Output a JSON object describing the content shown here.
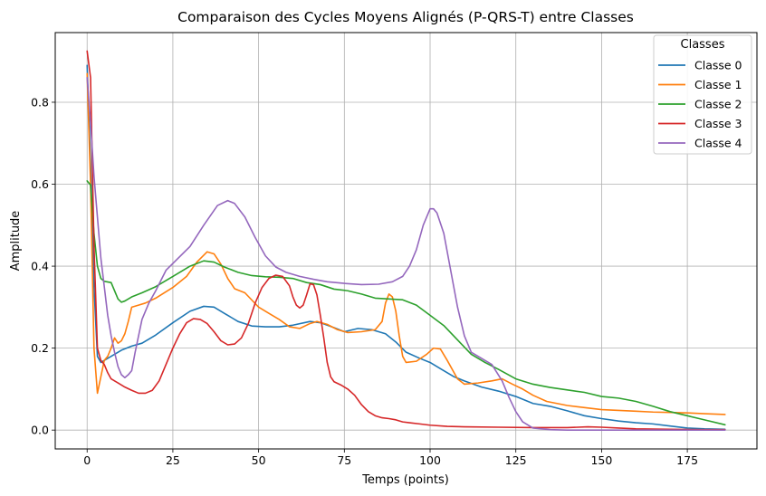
{
  "chart_data": {
    "type": "line",
    "title": "Comparaison des Cycles Moyens Alignés (P-QRS-T) entre Classes",
    "xlabel": "Temps (points)",
    "ylabel": "Amplitude",
    "xlim": [
      -9.3,
      195.3
    ],
    "ylim": [
      -0.046,
      0.97
    ],
    "xticks": [
      0,
      25,
      50,
      75,
      100,
      125,
      150,
      175
    ],
    "xtick_labels": [
      "0",
      "25",
      "50",
      "75",
      "100",
      "125",
      "150",
      "175"
    ],
    "yticks": [
      0.0,
      0.2,
      0.4,
      0.6,
      0.8
    ],
    "ytick_labels": [
      "0.0",
      "0.2",
      "0.4",
      "0.6",
      "0.8"
    ],
    "grid": true,
    "legend": {
      "title": "Classes",
      "position": "top-right"
    },
    "series": [
      {
        "name": "Classe 0",
        "color": "#1f77b4",
        "points": [
          [
            0,
            0.89
          ],
          [
            1,
            0.65
          ],
          [
            2,
            0.35
          ],
          [
            3,
            0.18
          ],
          [
            4,
            0.165
          ],
          [
            5,
            0.17
          ],
          [
            7,
            0.18
          ],
          [
            10,
            0.195
          ],
          [
            13,
            0.205
          ],
          [
            16,
            0.212
          ],
          [
            20,
            0.232
          ],
          [
            25,
            0.262
          ],
          [
            30,
            0.29
          ],
          [
            34,
            0.302
          ],
          [
            37,
            0.3
          ],
          [
            40,
            0.285
          ],
          [
            44,
            0.265
          ],
          [
            48,
            0.254
          ],
          [
            52,
            0.252
          ],
          [
            56,
            0.252
          ],
          [
            60,
            0.256
          ],
          [
            65,
            0.265
          ],
          [
            68,
            0.262
          ],
          [
            72,
            0.25
          ],
          [
            75,
            0.24
          ],
          [
            79,
            0.248
          ],
          [
            83,
            0.245
          ],
          [
            87,
            0.235
          ],
          [
            90,
            0.215
          ],
          [
            93,
            0.19
          ],
          [
            97,
            0.175
          ],
          [
            100,
            0.165
          ],
          [
            103,
            0.15
          ],
          [
            107,
            0.13
          ],
          [
            110,
            0.12
          ],
          [
            115,
            0.105
          ],
          [
            120,
            0.095
          ],
          [
            125,
            0.082
          ],
          [
            130,
            0.065
          ],
          [
            135,
            0.058
          ],
          [
            140,
            0.047
          ],
          [
            145,
            0.035
          ],
          [
            150,
            0.028
          ],
          [
            155,
            0.022
          ],
          [
            160,
            0.018
          ],
          [
            165,
            0.015
          ],
          [
            170,
            0.01
          ],
          [
            175,
            0.005
          ],
          [
            180,
            0.003
          ],
          [
            186,
            0.002
          ]
        ]
      },
      {
        "name": "Classe 1",
        "color": "#ff7f0e",
        "points": [
          [
            0,
            0.87
          ],
          [
            1,
            0.6
          ],
          [
            2,
            0.2
          ],
          [
            3,
            0.09
          ],
          [
            4,
            0.13
          ],
          [
            5,
            0.17
          ],
          [
            6,
            0.18
          ],
          [
            7,
            0.2
          ],
          [
            8,
            0.225
          ],
          [
            9,
            0.212
          ],
          [
            10,
            0.218
          ],
          [
            11,
            0.235
          ],
          [
            12,
            0.265
          ],
          [
            13,
            0.3
          ],
          [
            15,
            0.305
          ],
          [
            17,
            0.31
          ],
          [
            20,
            0.322
          ],
          [
            25,
            0.348
          ],
          [
            29,
            0.375
          ],
          [
            32,
            0.41
          ],
          [
            35,
            0.435
          ],
          [
            37,
            0.43
          ],
          [
            39,
            0.405
          ],
          [
            41,
            0.37
          ],
          [
            43,
            0.345
          ],
          [
            46,
            0.335
          ],
          [
            50,
            0.3
          ],
          [
            53,
            0.285
          ],
          [
            56,
            0.27
          ],
          [
            59,
            0.252
          ],
          [
            62,
            0.248
          ],
          [
            65,
            0.26
          ],
          [
            67,
            0.265
          ],
          [
            70,
            0.258
          ],
          [
            73,
            0.245
          ],
          [
            76,
            0.238
          ],
          [
            80,
            0.24
          ],
          [
            84,
            0.245
          ],
          [
            86,
            0.265
          ],
          [
            87,
            0.31
          ],
          [
            88,
            0.332
          ],
          [
            89,
            0.325
          ],
          [
            90,
            0.29
          ],
          [
            91,
            0.23
          ],
          [
            92,
            0.18
          ],
          [
            93,
            0.165
          ],
          [
            96,
            0.168
          ],
          [
            99,
            0.185
          ],
          [
            101,
            0.2
          ],
          [
            103,
            0.198
          ],
          [
            105,
            0.17
          ],
          [
            108,
            0.125
          ],
          [
            110,
            0.112
          ],
          [
            114,
            0.115
          ],
          [
            118,
            0.12
          ],
          [
            121,
            0.125
          ],
          [
            124,
            0.112
          ],
          [
            127,
            0.1
          ],
          [
            130,
            0.085
          ],
          [
            134,
            0.07
          ],
          [
            140,
            0.06
          ],
          [
            145,
            0.055
          ],
          [
            150,
            0.05
          ],
          [
            155,
            0.048
          ],
          [
            160,
            0.046
          ],
          [
            165,
            0.044
          ],
          [
            170,
            0.043
          ],
          [
            175,
            0.042
          ],
          [
            180,
            0.04
          ],
          [
            186,
            0.038
          ]
        ]
      },
      {
        "name": "Classe 2",
        "color": "#2ca02c",
        "points": [
          [
            0,
            0.608
          ],
          [
            1,
            0.598
          ],
          [
            2,
            0.48
          ],
          [
            3,
            0.4
          ],
          [
            4,
            0.37
          ],
          [
            5,
            0.363
          ],
          [
            7,
            0.36
          ],
          [
            9,
            0.32
          ],
          [
            10,
            0.312
          ],
          [
            11,
            0.315
          ],
          [
            13,
            0.325
          ],
          [
            16,
            0.335
          ],
          [
            20,
            0.35
          ],
          [
            25,
            0.375
          ],
          [
            30,
            0.4
          ],
          [
            34,
            0.413
          ],
          [
            37,
            0.41
          ],
          [
            40,
            0.398
          ],
          [
            44,
            0.385
          ],
          [
            48,
            0.377
          ],
          [
            52,
            0.374
          ],
          [
            56,
            0.373
          ],
          [
            60,
            0.37
          ],
          [
            64,
            0.36
          ],
          [
            68,
            0.355
          ],
          [
            72,
            0.344
          ],
          [
            76,
            0.34
          ],
          [
            80,
            0.332
          ],
          [
            84,
            0.322
          ],
          [
            88,
            0.32
          ],
          [
            92,
            0.318
          ],
          [
            96,
            0.305
          ],
          [
            100,
            0.28
          ],
          [
            104,
            0.255
          ],
          [
            108,
            0.22
          ],
          [
            112,
            0.185
          ],
          [
            116,
            0.165
          ],
          [
            120,
            0.148
          ],
          [
            125,
            0.125
          ],
          [
            130,
            0.112
          ],
          [
            135,
            0.104
          ],
          [
            140,
            0.098
          ],
          [
            145,
            0.092
          ],
          [
            150,
            0.082
          ],
          [
            155,
            0.078
          ],
          [
            160,
            0.07
          ],
          [
            165,
            0.058
          ],
          [
            170,
            0.045
          ],
          [
            175,
            0.035
          ],
          [
            180,
            0.025
          ],
          [
            186,
            0.013
          ]
        ]
      },
      {
        "name": "Classe 3",
        "color": "#d62728",
        "points": [
          [
            0,
            0.925
          ],
          [
            1,
            0.86
          ],
          [
            2,
            0.45
          ],
          [
            3,
            0.2
          ],
          [
            4,
            0.17
          ],
          [
            5,
            0.16
          ],
          [
            6,
            0.14
          ],
          [
            7,
            0.125
          ],
          [
            9,
            0.115
          ],
          [
            11,
            0.105
          ],
          [
            13,
            0.097
          ],
          [
            15,
            0.09
          ],
          [
            17,
            0.09
          ],
          [
            19,
            0.097
          ],
          [
            21,
            0.12
          ],
          [
            23,
            0.16
          ],
          [
            25,
            0.2
          ],
          [
            27,
            0.235
          ],
          [
            29,
            0.262
          ],
          [
            31,
            0.272
          ],
          [
            33,
            0.27
          ],
          [
            35,
            0.26
          ],
          [
            37,
            0.24
          ],
          [
            39,
            0.218
          ],
          [
            41,
            0.208
          ],
          [
            43,
            0.21
          ],
          [
            45,
            0.225
          ],
          [
            47,
            0.26
          ],
          [
            49,
            0.31
          ],
          [
            51,
            0.348
          ],
          [
            53,
            0.37
          ],
          [
            55,
            0.378
          ],
          [
            57,
            0.375
          ],
          [
            59,
            0.352
          ],
          [
            60,
            0.325
          ],
          [
            61,
            0.305
          ],
          [
            62,
            0.298
          ],
          [
            63,
            0.305
          ],
          [
            64,
            0.33
          ],
          [
            65,
            0.357
          ],
          [
            66,
            0.355
          ],
          [
            67,
            0.33
          ],
          [
            68,
            0.28
          ],
          [
            69,
            0.225
          ],
          [
            70,
            0.165
          ],
          [
            71,
            0.13
          ],
          [
            72,
            0.118
          ],
          [
            74,
            0.11
          ],
          [
            76,
            0.1
          ],
          [
            78,
            0.085
          ],
          [
            80,
            0.062
          ],
          [
            82,
            0.045
          ],
          [
            84,
            0.035
          ],
          [
            86,
            0.03
          ],
          [
            88,
            0.028
          ],
          [
            90,
            0.025
          ],
          [
            92,
            0.02
          ],
          [
            94,
            0.018
          ],
          [
            97,
            0.015
          ],
          [
            100,
            0.012
          ],
          [
            105,
            0.009
          ],
          [
            110,
            0.008
          ],
          [
            120,
            0.007
          ],
          [
            130,
            0.006
          ],
          [
            140,
            0.006
          ],
          [
            146,
            0.008
          ],
          [
            150,
            0.007
          ],
          [
            155,
            0.005
          ],
          [
            160,
            0.003
          ],
          [
            170,
            0.002
          ],
          [
            180,
            0.001
          ],
          [
            186,
            0.001
          ]
        ]
      },
      {
        "name": "Classe 4",
        "color": "#9467bd",
        "points": [
          [
            0,
            0.86
          ],
          [
            1,
            0.75
          ],
          [
            2,
            0.62
          ],
          [
            3,
            0.52
          ],
          [
            4,
            0.42
          ],
          [
            5,
            0.35
          ],
          [
            6,
            0.28
          ],
          [
            7,
            0.23
          ],
          [
            8,
            0.19
          ],
          [
            9,
            0.155
          ],
          [
            10,
            0.135
          ],
          [
            11,
            0.128
          ],
          [
            12,
            0.135
          ],
          [
            13,
            0.145
          ],
          [
            14,
            0.19
          ],
          [
            16,
            0.27
          ],
          [
            18,
            0.31
          ],
          [
            20,
            0.34
          ],
          [
            23,
            0.39
          ],
          [
            26,
            0.415
          ],
          [
            30,
            0.448
          ],
          [
            34,
            0.5
          ],
          [
            38,
            0.548
          ],
          [
            41,
            0.56
          ],
          [
            43,
            0.553
          ],
          [
            46,
            0.52
          ],
          [
            49,
            0.47
          ],
          [
            52,
            0.425
          ],
          [
            55,
            0.398
          ],
          [
            58,
            0.385
          ],
          [
            62,
            0.375
          ],
          [
            66,
            0.368
          ],
          [
            70,
            0.362
          ],
          [
            75,
            0.358
          ],
          [
            80,
            0.355
          ],
          [
            85,
            0.356
          ],
          [
            89,
            0.362
          ],
          [
            92,
            0.375
          ],
          [
            94,
            0.4
          ],
          [
            96,
            0.44
          ],
          [
            98,
            0.5
          ],
          [
            100,
            0.54
          ],
          [
            101,
            0.54
          ],
          [
            102,
            0.53
          ],
          [
            104,
            0.48
          ],
          [
            106,
            0.39
          ],
          [
            108,
            0.3
          ],
          [
            110,
            0.23
          ],
          [
            112,
            0.19
          ],
          [
            115,
            0.175
          ],
          [
            118,
            0.16
          ],
          [
            121,
            0.12
          ],
          [
            123,
            0.08
          ],
          [
            125,
            0.045
          ],
          [
            127,
            0.02
          ],
          [
            130,
            0.005
          ],
          [
            135,
            0.001
          ],
          [
            140,
            0.0
          ],
          [
            150,
            0.0
          ],
          [
            160,
            0.0
          ],
          [
            170,
            0.0
          ],
          [
            186,
            0.0
          ]
        ]
      }
    ]
  }
}
